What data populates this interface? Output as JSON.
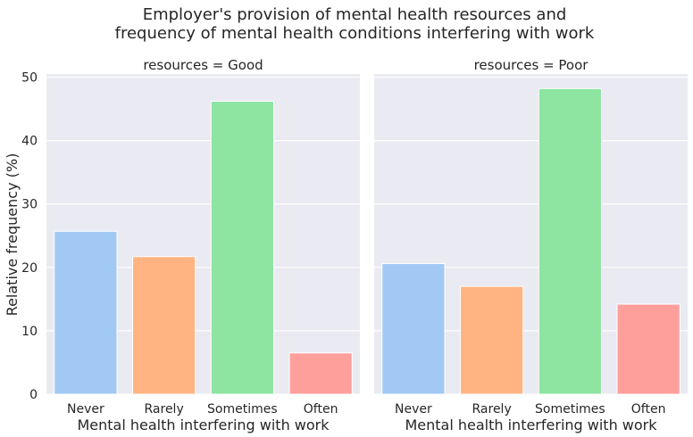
{
  "chart_data": {
    "type": "bar",
    "title_lines": [
      "Employer's provision of mental health resources and",
      "frequency of mental health conditions interfering with work"
    ],
    "ylabel": "Relative frequency (%)",
    "ylim": [
      0,
      50.5
    ],
    "yticks": [
      0,
      10,
      20,
      30,
      40,
      50
    ],
    "grid": true,
    "categories": [
      "Never",
      "Rarely",
      "Sometimes",
      "Often"
    ],
    "colors": [
      "#a1c9f4",
      "#ffb482",
      "#8de5a1",
      "#ff9f9b"
    ],
    "background": "#eaeaf2",
    "panels": [
      {
        "title": "resources = Good",
        "xlabel": "Mental health interfering with work",
        "values": [
          25.7,
          21.7,
          46.2,
          6.5
        ]
      },
      {
        "title": "resources = Poor",
        "xlabel": "Mental health interfering with work",
        "values": [
          20.6,
          17.0,
          48.2,
          14.2
        ]
      }
    ]
  }
}
